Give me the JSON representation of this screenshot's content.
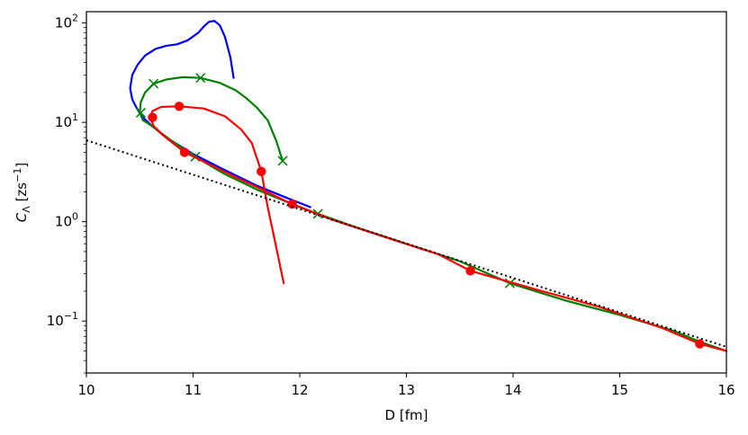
{
  "chart_data": {
    "type": "line",
    "title": "",
    "xlabel": "D [fm]",
    "ylabel_main": "C",
    "ylabel_sub": "Λ",
    "ylabel_unit_open": " [zs",
    "ylabel_unit_sup": "−1",
    "ylabel_unit_close": "]",
    "xlim": [
      10,
      16
    ],
    "ylim": [
      0.03,
      130
    ],
    "yscale": "log",
    "grid": false,
    "xticks": [
      10,
      11,
      12,
      13,
      14,
      15,
      16
    ],
    "xtick_labels": [
      "10",
      "11",
      "12",
      "13",
      "14",
      "15",
      "16"
    ],
    "yticks": [
      {
        "value": 0.1,
        "base": "10",
        "exp": "−1"
      },
      {
        "value": 1,
        "base": "10",
        "exp": "0"
      },
      {
        "value": 10,
        "base": "10",
        "exp": "1"
      },
      {
        "value": 100,
        "base": "10",
        "exp": "2"
      }
    ],
    "series": [
      {
        "name": "blue",
        "color": "#0000ff",
        "marker": "none",
        "x": [
          11.38,
          11.35,
          11.3,
          11.25,
          11.2,
          11.15,
          11.1,
          11.05,
          10.95,
          10.85,
          10.75,
          10.65,
          10.55,
          10.48,
          10.43,
          10.41,
          10.43,
          10.47,
          10.52,
          10.6,
          10.75,
          11.0,
          11.3,
          11.6,
          11.9,
          12.1
        ],
        "y": [
          28,
          45,
          72,
          95,
          105,
          103,
          92,
          80,
          67,
          61,
          59,
          55,
          47,
          38,
          30,
          22,
          17,
          14,
          11.5,
          9.5,
          7,
          4.8,
          3.3,
          2.3,
          1.7,
          1.4
        ],
        "markers_x": [],
        "markers_y": []
      },
      {
        "name": "green",
        "color": "#008000",
        "marker": "x",
        "x": [
          11.84,
          11.78,
          11.7,
          11.6,
          11.5,
          11.4,
          11.25,
          11.07,
          10.9,
          10.75,
          10.63,
          10.55,
          10.51,
          10.5,
          10.53,
          10.6,
          10.8,
          11.02,
          11.3,
          11.6,
          11.9,
          12.17,
          12.5,
          13.0,
          13.5,
          13.97,
          14.5,
          15.0,
          15.5,
          15.75,
          16.0
        ],
        "y": [
          4.1,
          6.5,
          10.5,
          14,
          17.5,
          21,
          25,
          28,
          28.5,
          27,
          24.5,
          20,
          16,
          12.5,
          10.5,
          9.4,
          6.5,
          4.5,
          3,
          2.1,
          1.55,
          1.2,
          0.9,
          0.6,
          0.4,
          0.24,
          0.16,
          0.115,
          0.08,
          0.062,
          0.05
        ],
        "markers_x": [
          11.84,
          11.07,
          10.63,
          10.51,
          11.02,
          12.17,
          13.97
        ],
        "markers_y": [
          4.1,
          28,
          24.5,
          12.5,
          4.5,
          1.2,
          0.24
        ]
      },
      {
        "name": "red",
        "color": "#ff0000",
        "marker": "o",
        "x": [
          11.85,
          11.78,
          11.7,
          11.64,
          11.55,
          11.45,
          11.3,
          11.1,
          10.87,
          10.7,
          10.62,
          10.6,
          10.63,
          10.72,
          10.92,
          11.15,
          11.4,
          11.65,
          11.93,
          12.3,
          12.8,
          13.3,
          13.6,
          14.2,
          14.8,
          15.4,
          15.75,
          16.0
        ],
        "y": [
          0.24,
          0.55,
          1.4,
          3.2,
          6.2,
          8.5,
          11.5,
          13.8,
          14.5,
          14.3,
          13,
          11.2,
          9.2,
          7.4,
          5.0,
          3.8,
          2.8,
          2.1,
          1.5,
          1.05,
          0.7,
          0.47,
          0.32,
          0.21,
          0.14,
          0.085,
          0.059,
          0.05
        ],
        "markers_x": [
          11.64,
          10.87,
          10.62,
          10.92,
          11.93,
          13.6,
          15.75
        ],
        "markers_y": [
          3.2,
          14.5,
          11.2,
          5.0,
          1.5,
          0.32,
          0.059
        ]
      },
      {
        "name": "fit",
        "color": "#000000",
        "marker": "none",
        "linestyle": "dotted",
        "x": [
          10,
          16
        ],
        "y": [
          6.6,
          0.055
        ],
        "markers_x": [],
        "markers_y": []
      }
    ]
  }
}
